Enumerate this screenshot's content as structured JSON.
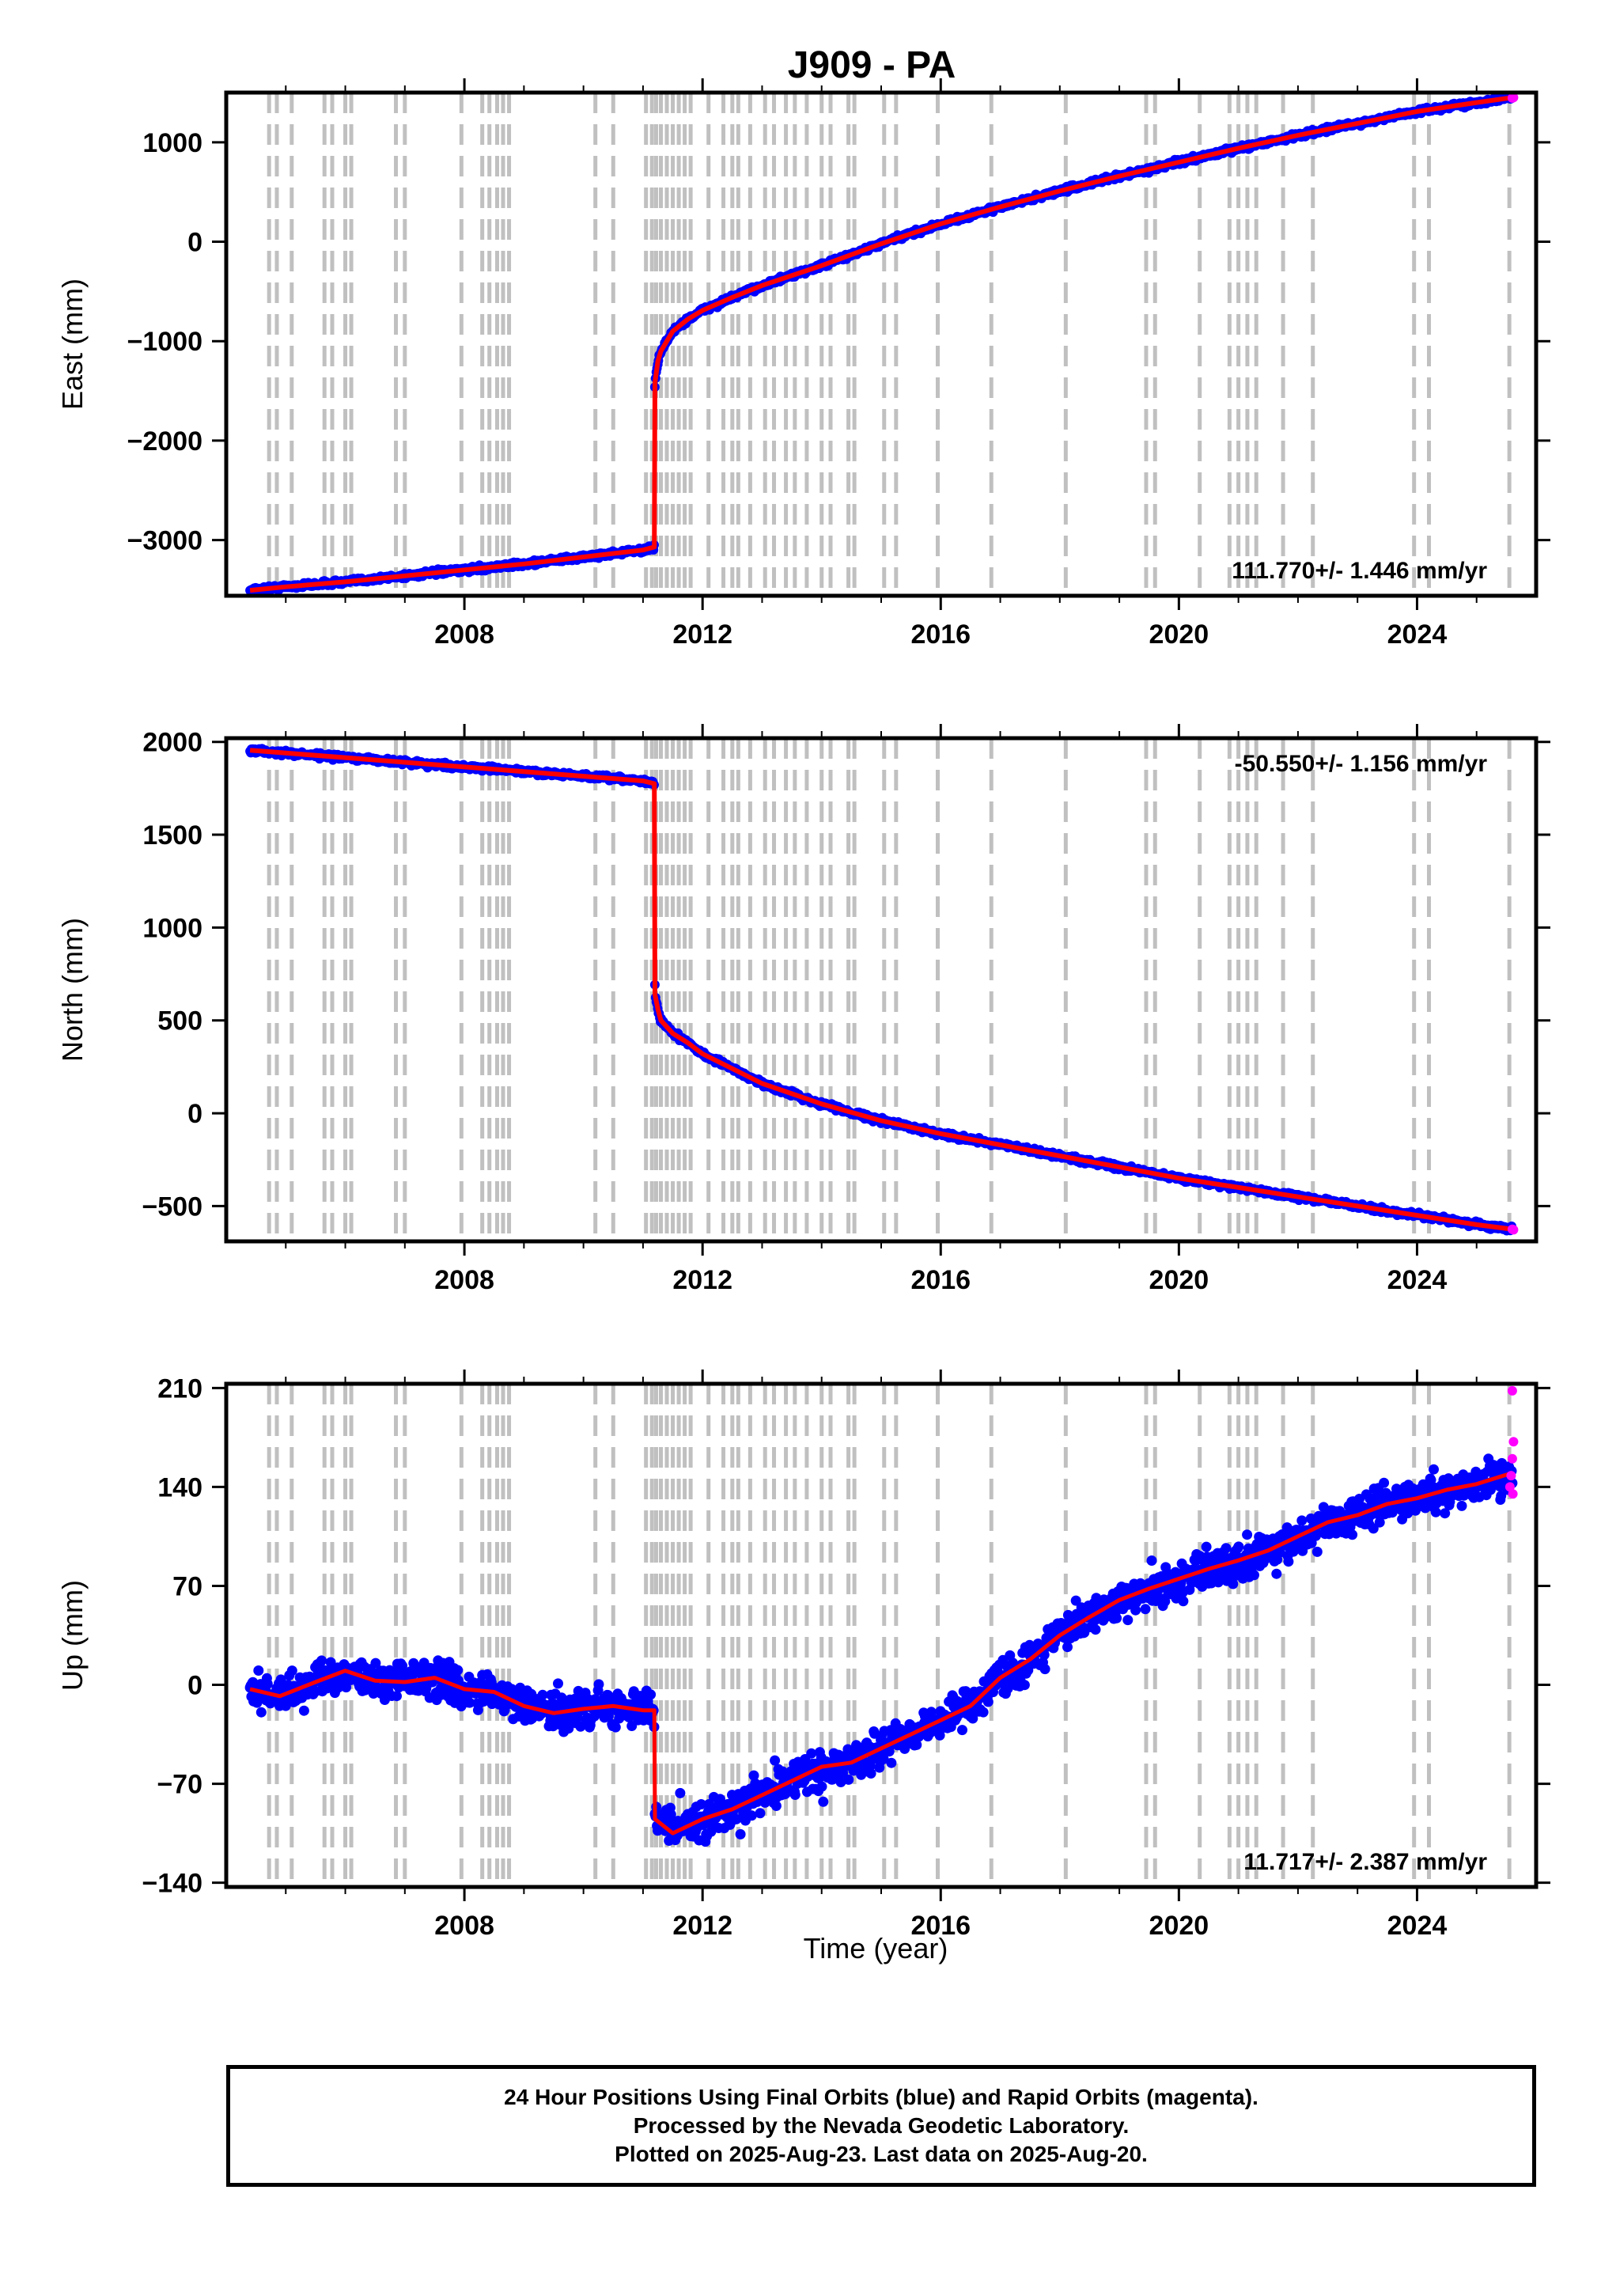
{
  "title": "J909 - PA",
  "xlabel": "Time (year)",
  "footer": {
    "line1": "24 Hour Positions Using Final Orbits (blue) and Rapid Orbits (magenta).",
    "line2": "Processed by the Nevada Geodetic Laboratory.",
    "line3": "Plotted on 2025-Aug-23. Last data on 2025-Aug-20."
  },
  "colors": {
    "final": "#0000ff",
    "rapid": "#ff00ff",
    "model": "#ff0000",
    "events": "#c0c0c0"
  },
  "events": [
    2004.72,
    2004.85,
    2005.1,
    2005.65,
    2005.78,
    2006.0,
    2006.1,
    2006.85,
    2007.0,
    2007.95,
    2008.3,
    2008.42,
    2008.55,
    2008.65,
    2008.75,
    2010.2,
    2010.5,
    2011.05,
    2011.15,
    2011.22,
    2011.3,
    2011.4,
    2011.5,
    2011.6,
    2011.7,
    2011.8,
    2012.1,
    2012.35,
    2012.5,
    2012.6,
    2012.8,
    2013.05,
    2013.2,
    2013.4,
    2013.55,
    2013.75,
    2014.0,
    2014.15,
    2014.45,
    2014.55,
    2015.05,
    2015.25,
    2015.95,
    2016.85,
    2018.1,
    2019.45,
    2019.6,
    2020.35,
    2020.85,
    2021.0,
    2021.15,
    2021.3,
    2021.75,
    2022.25,
    2023.95,
    2024.2,
    2025.55
  ],
  "chart_data": [
    {
      "type": "scatter",
      "component": "east",
      "ylabel": "East (mm)",
      "xlim": [
        2004.0,
        2026.0
      ],
      "ylim": [
        -3560,
        1500
      ],
      "x_ticks": [
        2008,
        2012,
        2016,
        2020,
        2024
      ],
      "x_tick_labels": [
        "2008",
        "2012",
        "2016",
        "2020",
        "2024"
      ],
      "y_ticks": [
        -3000,
        -2000,
        -1000,
        0,
        1000
      ],
      "y_tick_labels": [
        "−3000",
        "−2000",
        "−1000",
        "0",
        "1000"
      ],
      "rate_label": "111.770+/- 1.446 mm/yr",
      "rate_position": "bottom-right",
      "data_start": 2004.4,
      "data_end": 2025.63,
      "series": [
        {
          "name": "Final Orbits",
          "x": [
            2004.4,
            2005.0,
            2006.0,
            2007.0,
            2008.0,
            2009.0,
            2010.0,
            2011.0,
            2011.19,
            2011.2,
            2011.25,
            2011.3,
            2011.5,
            2011.75,
            2012.0,
            2012.5,
            2013.0,
            2014.0,
            2015.0,
            2016.0,
            2017.0,
            2018.0,
            2019.0,
            2020.0,
            2021.0,
            2022.0,
            2023.0,
            2024.0,
            2025.0,
            2025.6
          ],
          "y": [
            -3505,
            -3470,
            -3420,
            -3360,
            -3300,
            -3240,
            -3170,
            -3100,
            -3070,
            -1420,
            -1200,
            -1100,
            -900,
            -780,
            -690,
            -560,
            -440,
            -240,
            -20,
            180,
            350,
            510,
            660,
            800,
            940,
            1070,
            1190,
            1310,
            1400,
            1450
          ]
        },
        {
          "name": "Rapid Orbits",
          "x": [
            2025.6,
            2025.62
          ],
          "y": [
            1445,
            1450
          ]
        }
      ]
    },
    {
      "type": "scatter",
      "component": "north",
      "ylabel": "North (mm)",
      "xlim": [
        2004.0,
        2026.0
      ],
      "ylim": [
        -690,
        2020
      ],
      "x_ticks": [
        2008,
        2012,
        2016,
        2020,
        2024
      ],
      "x_tick_labels": [
        "2008",
        "2012",
        "2016",
        "2020",
        "2024"
      ],
      "y_ticks": [
        -500,
        0,
        500,
        1000,
        1500,
        2000
      ],
      "y_tick_labels": [
        "−500",
        "0",
        "500",
        "1000",
        "1500",
        "2000"
      ],
      "rate_label": "-50.550+/- 1.156 mm/yr",
      "rate_position": "top-right",
      "data_start": 2004.4,
      "data_end": 2025.63,
      "series": [
        {
          "name": "Final Orbits",
          "x": [
            2004.4,
            2005.0,
            2006.0,
            2007.0,
            2008.0,
            2009.0,
            2010.0,
            2011.0,
            2011.19,
            2011.2,
            2011.25,
            2011.3,
            2011.5,
            2011.75,
            2012.0,
            2012.5,
            2013.0,
            2014.0,
            2015.0,
            2016.0,
            2017.0,
            2018.0,
            2019.0,
            2020.0,
            2021.0,
            2022.0,
            2023.0,
            2024.0,
            2025.0,
            2025.6
          ],
          "y": [
            1955,
            1940,
            1915,
            1890,
            1865,
            1840,
            1815,
            1790,
            1775,
            640,
            560,
            500,
            430,
            380,
            320,
            240,
            160,
            50,
            -40,
            -110,
            -170,
            -230,
            -290,
            -350,
            -400,
            -450,
            -500,
            -550,
            -600,
            -625
          ]
        },
        {
          "name": "Rapid Orbits",
          "x": [
            2025.6,
            2025.62
          ],
          "y": [
            -625,
            -628
          ]
        }
      ]
    },
    {
      "type": "scatter",
      "component": "up",
      "ylabel": "Up (mm)",
      "xlim": [
        2004.0,
        2026.0
      ],
      "ylim": [
        -143,
        213
      ],
      "x_ticks": [
        2008,
        2012,
        2016,
        2020,
        2024
      ],
      "x_tick_labels": [
        "2008",
        "2012",
        "2016",
        "2020",
        "2024"
      ],
      "y_ticks": [
        -140,
        -70,
        0,
        70,
        140,
        210
      ],
      "y_tick_labels": [
        "−140",
        "−70",
        "0",
        "70",
        "140",
        "210"
      ],
      "rate_label": "11.717+/- 2.387 mm/yr",
      "rate_position": "bottom-right",
      "data_start": 2004.4,
      "data_end": 2025.63,
      "series": [
        {
          "name": "Final Orbits",
          "x": [
            2004.4,
            2004.9,
            2005.5,
            2006.0,
            2006.5,
            2007.0,
            2007.5,
            2008.0,
            2008.5,
            2009.0,
            2009.5,
            2010.0,
            2010.5,
            2011.0,
            2011.19,
            2011.2,
            2011.5,
            2012.0,
            2012.5,
            2013.0,
            2013.5,
            2014.0,
            2014.5,
            2015.0,
            2015.5,
            2016.0,
            2016.5,
            2017.0,
            2017.5,
            2018.0,
            2018.5,
            2019.0,
            2019.5,
            2020.0,
            2020.5,
            2021.0,
            2021.5,
            2022.0,
            2022.5,
            2023.0,
            2023.5,
            2024.0,
            2024.5,
            2025.0,
            2025.6
          ],
          "y": [
            -3,
            -8,
            2,
            10,
            3,
            2,
            5,
            -3,
            -5,
            -15,
            -20,
            -17,
            -15,
            -18,
            -18,
            -95,
            -105,
            -95,
            -88,
            -78,
            -68,
            -58,
            -55,
            -45,
            -35,
            -25,
            -15,
            5,
            18,
            35,
            48,
            60,
            68,
            75,
            82,
            88,
            95,
            105,
            115,
            120,
            128,
            132,
            138,
            142,
            150
          ]
        },
        {
          "name": "Rapid Orbits",
          "x": [
            2025.56,
            2025.58,
            2025.6,
            2025.62,
            2025.6,
            2025.61
          ],
          "y": [
            140,
            148,
            160,
            172,
            208,
            135
          ]
        }
      ]
    }
  ]
}
